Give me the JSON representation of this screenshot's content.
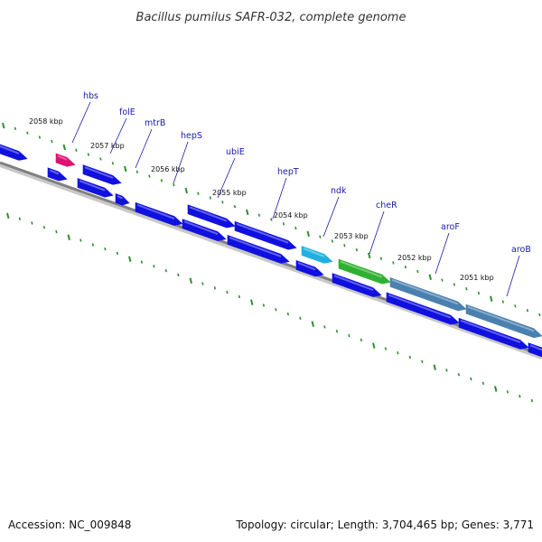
{
  "title": "Bacillus pumilus SAFR-032, complete genome",
  "footer": {
    "accession": "Accession: NC_009848",
    "summary": "Topology: circular; Length: 3,704,465 bp; Genes: 3,771"
  },
  "scale_labels": [
    "2058 kbp",
    "2057 kbp",
    "2056 kbp",
    "2055 kbp",
    "2054 kbp",
    "2053 kbp",
    "2052 kbp",
    "2051 kbp"
  ],
  "gene_labels": [
    "hbs",
    "folE",
    "mtrB",
    "hepS",
    "ubiE",
    "hepT",
    "ndk",
    "cheR",
    "aroF",
    "aroB"
  ],
  "colors": {
    "backbone": "#808080",
    "tick": "#2f8f2f",
    "cds": "#1010e0",
    "hbs": "#e01070",
    "ndk": "#20b0e0",
    "cheR": "#30b030",
    "aro": "#4a80b0",
    "label_line": "#1a1aa8"
  }
}
